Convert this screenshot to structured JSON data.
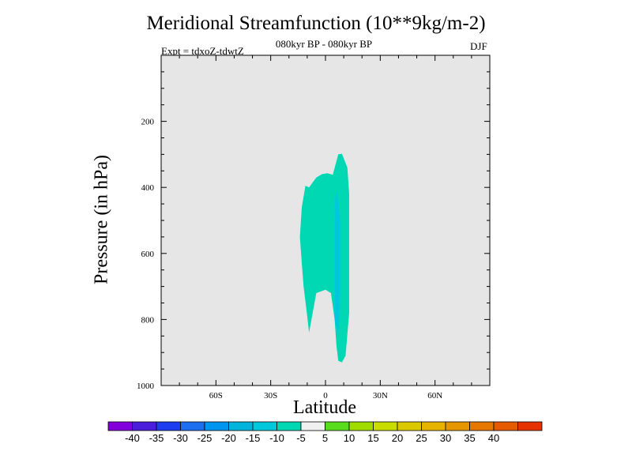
{
  "chart_data": {
    "type": "contour",
    "title": "Meridional Streamfunction (10**9kg/m-2)",
    "subtitle": "080kyr BP - 080kyr BP",
    "experiment": "Expt = tdxoZ-tdwtZ",
    "season": "DJF",
    "xlabel": "Latitude",
    "ylabel": "Pressure (in hPa)",
    "xlim": [
      -90,
      90
    ],
    "ylim": [
      1000,
      0
    ],
    "x_ticks": [
      {
        "value": -60,
        "label": "60S"
      },
      {
        "value": -30,
        "label": "30S"
      },
      {
        "value": 0,
        "label": "0"
      },
      {
        "value": 30,
        "label": "30N"
      },
      {
        "value": 60,
        "label": "60N"
      }
    ],
    "y_ticks": [
      {
        "value": 200,
        "label": "200"
      },
      {
        "value": 400,
        "label": "400"
      },
      {
        "value": 600,
        "label": "600"
      },
      {
        "value": 800,
        "label": "800"
      },
      {
        "value": 1000,
        "label": "1000"
      }
    ],
    "background_color": "#e6e6e6",
    "contour_regions": [
      {
        "level": "-10 to -5",
        "color": "#00d8b4",
        "points": [
          [
            -11,
            395
          ],
          [
            -9,
            400
          ],
          [
            -7,
            385
          ],
          [
            -5,
            370
          ],
          [
            -2,
            360
          ],
          [
            1,
            357
          ],
          [
            4,
            362
          ],
          [
            7,
            300
          ],
          [
            9,
            298
          ],
          [
            12,
            340
          ],
          [
            13,
            420
          ],
          [
            13,
            560
          ],
          [
            13,
            780
          ],
          [
            11,
            910
          ],
          [
            9,
            930
          ],
          [
            7,
            925
          ],
          [
            6,
            880
          ],
          [
            5,
            800
          ],
          [
            3,
            720
          ],
          [
            0,
            710
          ],
          [
            -5,
            720
          ],
          [
            -7,
            780
          ],
          [
            -9,
            840
          ],
          [
            -10,
            790
          ],
          [
            -12,
            700
          ],
          [
            -13,
            630
          ],
          [
            -14,
            550
          ],
          [
            -13,
            460
          ]
        ]
      },
      {
        "level": "-15 to -10",
        "color": "#00c8dc",
        "points": [
          [
            6,
            410
          ],
          [
            7,
            440
          ],
          [
            8,
            500
          ],
          [
            8,
            620
          ],
          [
            8,
            740
          ],
          [
            7,
            850
          ],
          [
            5,
            800
          ],
          [
            5,
            700
          ],
          [
            5,
            550
          ],
          [
            5,
            450
          ]
        ]
      }
    ],
    "colorbar": {
      "colors": [
        "#8200dc",
        "#4b1edc",
        "#1e3cf0",
        "#1e6ef0",
        "#0096f0",
        "#00b4dc",
        "#00c8dc",
        "#00d8b4",
        "#f0f0f0",
        "#5adc1e",
        "#a0dc00",
        "#c8dc00",
        "#dcc800",
        "#e6b400",
        "#e69600",
        "#e67800",
        "#e65a00",
        "#e63200"
      ],
      "labels": [
        "-40",
        "-35",
        "-30",
        "-25",
        "-20",
        "-15",
        "-10",
        "-5",
        "5",
        "10",
        "15",
        "20",
        "25",
        "30",
        "35",
        "40"
      ]
    }
  }
}
